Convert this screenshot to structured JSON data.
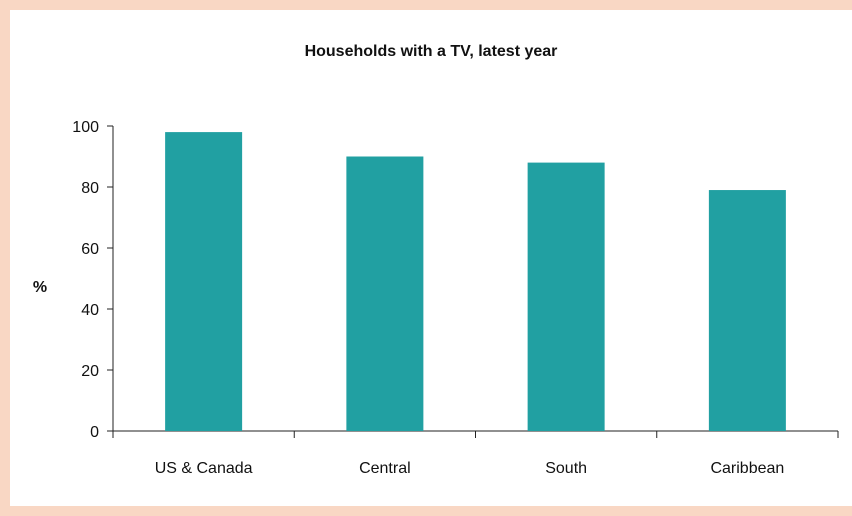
{
  "chart_data": {
    "type": "bar",
    "title": "Households with a TV, latest year",
    "xlabel": "",
    "ylabel": "%",
    "categories": [
      "US & Canada",
      "Central",
      "South",
      "Caribbean"
    ],
    "values": [
      98,
      90,
      88,
      79
    ],
    "ylim": [
      0,
      100
    ],
    "yticks": [
      0,
      20,
      40,
      60,
      80,
      100
    ],
    "grid": false,
    "legend": "none",
    "bar_color": "#21a0a2"
  }
}
